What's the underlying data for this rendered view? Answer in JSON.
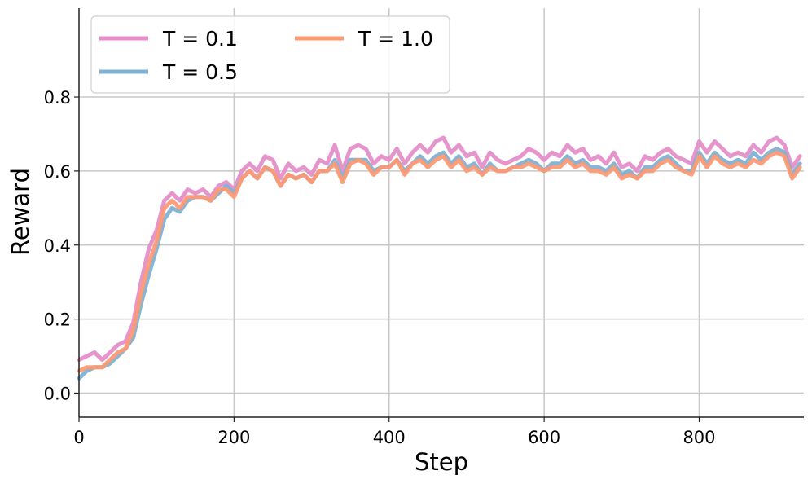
{
  "chart_data": {
    "type": "line",
    "title": "",
    "xlabel": "Step",
    "ylabel": "Reward",
    "xlim": [
      0,
      935
    ],
    "ylim": [
      -0.065,
      1.04
    ],
    "xticks": [
      0,
      200,
      400,
      600,
      800
    ],
    "yticks": [
      0.0,
      0.2,
      0.4,
      0.6,
      0.8
    ],
    "xtick_labels": [
      "0",
      "200",
      "400",
      "600",
      "800"
    ],
    "ytick_labels": [
      "0.0",
      "0.2",
      "0.4",
      "0.6",
      "0.8"
    ],
    "grid": true,
    "legend_position": "top-left",
    "x": [
      0,
      10,
      20,
      30,
      40,
      50,
      60,
      70,
      80,
      90,
      100,
      110,
      120,
      130,
      140,
      150,
      160,
      170,
      180,
      190,
      200,
      210,
      220,
      230,
      240,
      250,
      260,
      270,
      280,
      290,
      300,
      310,
      320,
      330,
      340,
      350,
      360,
      370,
      380,
      390,
      400,
      410,
      420,
      430,
      440,
      450,
      460,
      470,
      480,
      490,
      500,
      510,
      520,
      530,
      540,
      550,
      560,
      570,
      580,
      590,
      600,
      610,
      620,
      630,
      640,
      650,
      660,
      670,
      680,
      690,
      700,
      710,
      720,
      730,
      740,
      750,
      760,
      770,
      780,
      790,
      800,
      810,
      820,
      830,
      840,
      850,
      860,
      870,
      880,
      890,
      900,
      910,
      920,
      930
    ],
    "series": [
      {
        "name": "T = 0.1",
        "color": "#e58fc9",
        "values": [
          0.09,
          0.1,
          0.11,
          0.09,
          0.11,
          0.13,
          0.14,
          0.19,
          0.3,
          0.39,
          0.44,
          0.52,
          0.54,
          0.52,
          0.55,
          0.54,
          0.55,
          0.53,
          0.56,
          0.57,
          0.55,
          0.6,
          0.62,
          0.6,
          0.64,
          0.63,
          0.58,
          0.62,
          0.6,
          0.61,
          0.59,
          0.63,
          0.62,
          0.67,
          0.6,
          0.66,
          0.67,
          0.66,
          0.62,
          0.64,
          0.63,
          0.66,
          0.62,
          0.65,
          0.67,
          0.65,
          0.68,
          0.69,
          0.65,
          0.67,
          0.64,
          0.65,
          0.61,
          0.65,
          0.63,
          0.62,
          0.63,
          0.64,
          0.66,
          0.65,
          0.63,
          0.65,
          0.64,
          0.67,
          0.65,
          0.66,
          0.63,
          0.64,
          0.62,
          0.65,
          0.61,
          0.62,
          0.6,
          0.64,
          0.63,
          0.65,
          0.66,
          0.64,
          0.63,
          0.62,
          0.68,
          0.65,
          0.68,
          0.66,
          0.64,
          0.65,
          0.64,
          0.67,
          0.65,
          0.68,
          0.69,
          0.67,
          0.61,
          0.64
        ]
      },
      {
        "name": "T = 0.5",
        "color": "#80b1d3",
        "values": [
          0.04,
          0.06,
          0.07,
          0.07,
          0.08,
          0.1,
          0.12,
          0.15,
          0.24,
          0.32,
          0.39,
          0.47,
          0.5,
          0.49,
          0.52,
          0.53,
          0.53,
          0.52,
          0.54,
          0.56,
          0.54,
          0.58,
          0.6,
          0.58,
          0.61,
          0.6,
          0.56,
          0.59,
          0.58,
          0.59,
          0.57,
          0.6,
          0.6,
          0.63,
          0.58,
          0.63,
          0.63,
          0.63,
          0.6,
          0.61,
          0.61,
          0.63,
          0.6,
          0.62,
          0.64,
          0.62,
          0.64,
          0.65,
          0.62,
          0.64,
          0.61,
          0.62,
          0.59,
          0.62,
          0.6,
          0.6,
          0.61,
          0.62,
          0.63,
          0.62,
          0.6,
          0.62,
          0.62,
          0.64,
          0.62,
          0.63,
          0.61,
          0.61,
          0.6,
          0.62,
          0.59,
          0.6,
          0.58,
          0.61,
          0.61,
          0.63,
          0.64,
          0.62,
          0.6,
          0.6,
          0.65,
          0.62,
          0.65,
          0.63,
          0.62,
          0.63,
          0.62,
          0.65,
          0.63,
          0.65,
          0.66,
          0.65,
          0.59,
          0.62
        ]
      },
      {
        "name": "T = 1.0",
        "color": "#fc9a75",
        "values": [
          0.06,
          0.07,
          0.07,
          0.07,
          0.09,
          0.11,
          0.12,
          0.17,
          0.27,
          0.35,
          0.41,
          0.5,
          0.52,
          0.5,
          0.53,
          0.53,
          0.53,
          0.52,
          0.55,
          0.55,
          0.53,
          0.58,
          0.6,
          0.58,
          0.61,
          0.6,
          0.56,
          0.59,
          0.58,
          0.59,
          0.57,
          0.6,
          0.6,
          0.62,
          0.57,
          0.62,
          0.63,
          0.62,
          0.59,
          0.61,
          0.61,
          0.63,
          0.59,
          0.62,
          0.63,
          0.61,
          0.63,
          0.64,
          0.61,
          0.63,
          0.6,
          0.61,
          0.59,
          0.61,
          0.6,
          0.6,
          0.61,
          0.61,
          0.62,
          0.61,
          0.6,
          0.61,
          0.61,
          0.63,
          0.61,
          0.62,
          0.6,
          0.6,
          0.59,
          0.61,
          0.58,
          0.59,
          0.58,
          0.6,
          0.6,
          0.62,
          0.63,
          0.61,
          0.6,
          0.59,
          0.64,
          0.61,
          0.64,
          0.62,
          0.61,
          0.62,
          0.61,
          0.63,
          0.62,
          0.64,
          0.65,
          0.64,
          0.58,
          0.61
        ]
      }
    ]
  }
}
